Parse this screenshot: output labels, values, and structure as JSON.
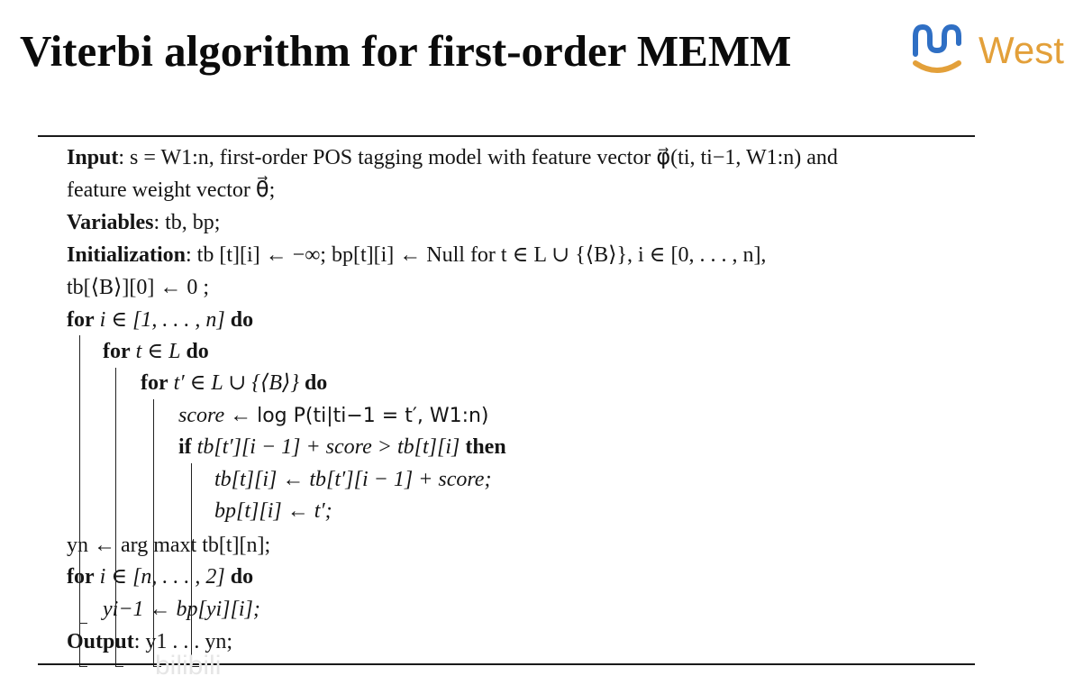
{
  "slide": {
    "title": "Viterbi algorithm for first-order MEMM",
    "logo_text": "West",
    "logo_color": "#e3a03a"
  },
  "algorithm": {
    "input_label": "Input",
    "input_text": ": s = W1:n, first-order POS tagging model with feature vector φ⃗(ti, ti−1, W1:n) and",
    "input_text_cont": "feature weight vector θ⃗;",
    "variables_label": "Variables",
    "variables_text": ": tb, bp;",
    "init_label": "Initialization",
    "init_text": ": tb [t][i] ← −∞; bp[t][i] ← Null for t ∈ L ∪ {⟨B⟩}, i ∈ [0, . . . , n],",
    "init_text_cont": "tb[⟨B⟩][0] ← 0 ;",
    "loop1": {
      "kw_for": "for",
      "cond": "i ∈ [1, . . . , n]",
      "kw_do": "do"
    },
    "loop2": {
      "kw_for": "for",
      "cond": "t ∈ L",
      "kw_do": "do"
    },
    "loop3": {
      "kw_for": "for",
      "cond": "t′ ∈ L ∪ {⟨B⟩}",
      "kw_do": "do"
    },
    "score_line": {
      "lhs": "score ←",
      "rhs": "log P(ti|ti−1 = t′, W1:n)"
    },
    "if_line": {
      "kw_if": "if",
      "cond": "tb[t′][i − 1] + score > tb[t][i]",
      "kw_then": "then"
    },
    "assign_tb": "tb[t][i] ← tb[t′][i − 1] + score;",
    "assign_bp": "bp[t][i] ← t′;",
    "argmax_line": "yn ← arg maxt tb[t][n];",
    "loop4": {
      "kw_for": "for",
      "cond": "i ∈ [n, . . . , 2]",
      "kw_do": "do"
    },
    "backtrace": "yi−1 ← bp[yi][i];",
    "output_label": "Output",
    "output_text": ": y1 . . . yn;"
  },
  "watermark": {
    "text": "bilibili"
  }
}
